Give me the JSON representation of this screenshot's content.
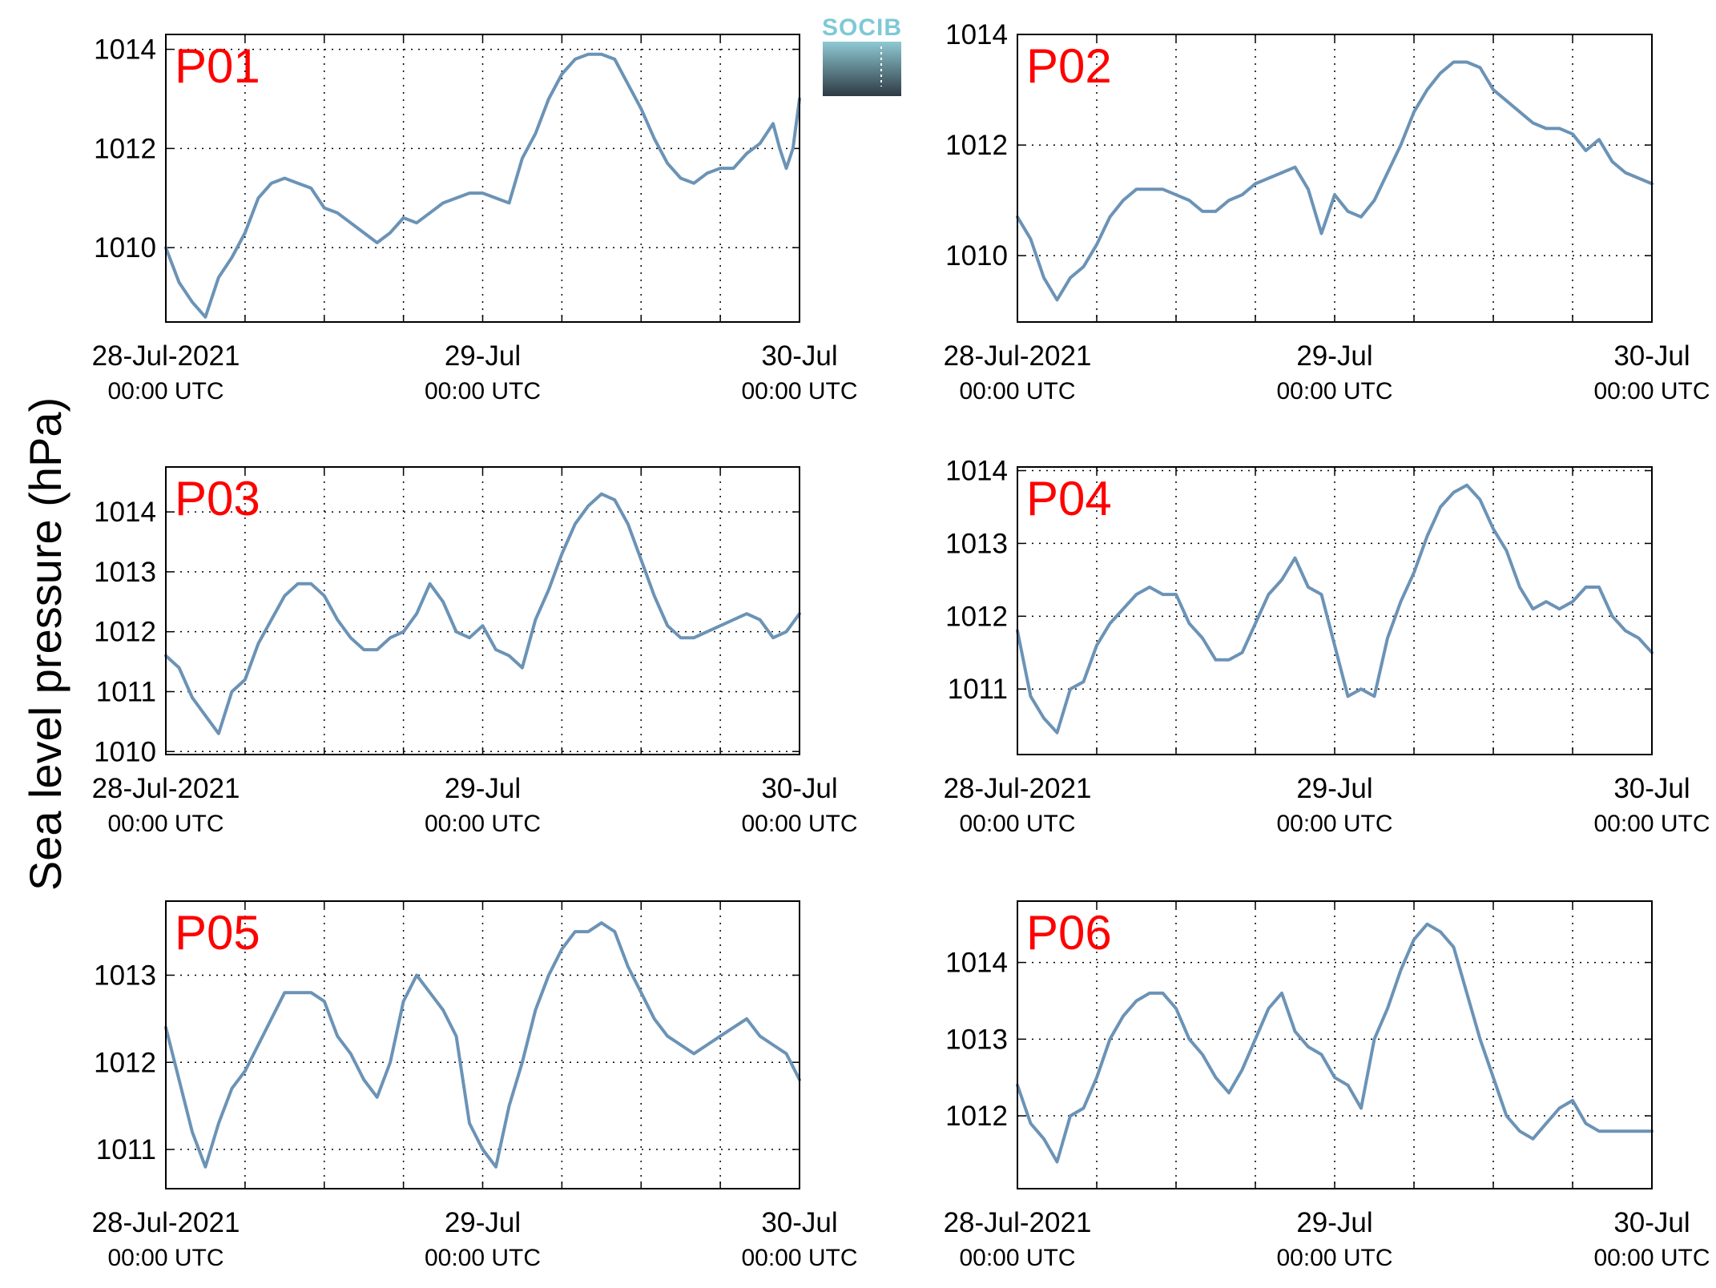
{
  "figure": {
    "ylabel": "Sea level pressure (hPa)",
    "logo_text": "SOCIB"
  },
  "chart_data": [
    {
      "type": "line",
      "panel": "P01",
      "xlim": [
        0,
        48
      ],
      "ylim": [
        1008.5,
        1014.3
      ],
      "yticks": [
        1010,
        1012,
        1014
      ],
      "xticks": [
        {
          "x": 0,
          "label": "28-Jul-2021",
          "sublabel": "00:00 UTC"
        },
        {
          "x": 24,
          "label": "29-Jul",
          "sublabel": "00:00 UTC"
        },
        {
          "x": 48,
          "label": "30-Jul",
          "sublabel": "00:00 UTC"
        }
      ],
      "grid": true,
      "series": [
        {
          "color": "#6b93b6",
          "x": [
            0,
            1,
            2,
            3,
            4,
            5,
            6,
            7,
            8,
            9,
            10,
            11,
            12,
            13,
            14,
            15,
            16,
            17,
            18,
            19,
            20,
            21,
            22,
            23,
            24,
            25,
            26,
            27,
            28,
            29,
            30,
            31,
            32,
            33,
            34,
            35,
            36,
            37,
            38,
            39,
            40,
            41,
            42,
            43,
            44,
            45,
            46,
            46.5,
            47,
            47.5,
            48
          ],
          "y": [
            1010.0,
            1009.3,
            1008.9,
            1008.6,
            1009.4,
            1009.8,
            1010.3,
            1011.0,
            1011.3,
            1011.4,
            1011.3,
            1011.2,
            1010.8,
            1010.7,
            1010.5,
            1010.3,
            1010.1,
            1010.3,
            1010.6,
            1010.5,
            1010.7,
            1010.9,
            1011.0,
            1011.1,
            1011.1,
            1011.0,
            1010.9,
            1011.8,
            1012.3,
            1013.0,
            1013.5,
            1013.8,
            1013.9,
            1013.9,
            1013.8,
            1013.3,
            1012.8,
            1012.2,
            1011.7,
            1011.4,
            1011.3,
            1011.5,
            1011.6,
            1011.6,
            1011.9,
            1012.1,
            1012.5,
            1012.0,
            1011.6,
            1012.0,
            1013.0
          ]
        }
      ]
    },
    {
      "type": "line",
      "panel": "P02",
      "xlim": [
        0,
        48
      ],
      "ylim": [
        1008.8,
        1014.0
      ],
      "yticks": [
        1010,
        1012,
        1014
      ],
      "xticks": [
        {
          "x": 0,
          "label": "28-Jul-2021",
          "sublabel": "00:00 UTC"
        },
        {
          "x": 24,
          "label": "29-Jul",
          "sublabel": "00:00 UTC"
        },
        {
          "x": 48,
          "label": "30-Jul",
          "sublabel": "00:00 UTC"
        }
      ],
      "grid": true,
      "series": [
        {
          "color": "#6b93b6",
          "x": [
            0,
            1,
            2,
            3,
            4,
            5,
            6,
            7,
            8,
            9,
            10,
            11,
            12,
            13,
            14,
            15,
            16,
            17,
            18,
            19,
            20,
            21,
            22,
            23,
            24,
            25,
            26,
            27,
            28,
            29,
            30,
            31,
            32,
            33,
            34,
            35,
            36,
            37,
            38,
            39,
            40,
            41,
            42,
            43,
            44,
            45,
            46,
            47,
            48
          ],
          "y": [
            1010.7,
            1010.3,
            1009.6,
            1009.2,
            1009.6,
            1009.8,
            1010.2,
            1010.7,
            1011.0,
            1011.2,
            1011.2,
            1011.2,
            1011.1,
            1011.0,
            1010.8,
            1010.8,
            1011.0,
            1011.1,
            1011.3,
            1011.4,
            1011.5,
            1011.6,
            1011.2,
            1010.4,
            1011.1,
            1010.8,
            1010.7,
            1011.0,
            1011.5,
            1012.0,
            1012.6,
            1013.0,
            1013.3,
            1013.5,
            1013.5,
            1013.4,
            1013.0,
            1012.8,
            1012.6,
            1012.4,
            1012.3,
            1012.3,
            1012.2,
            1011.9,
            1012.1,
            1011.7,
            1011.5,
            1011.4,
            1011.3
          ]
        }
      ]
    },
    {
      "type": "line",
      "panel": "P03",
      "xlim": [
        0,
        48
      ],
      "ylim": [
        1009.95,
        1014.75
      ],
      "yticks": [
        1010,
        1011,
        1012,
        1013,
        1014
      ],
      "xticks": [
        {
          "x": 0,
          "label": "28-Jul-2021",
          "sublabel": "00:00 UTC"
        },
        {
          "x": 24,
          "label": "29-Jul",
          "sublabel": "00:00 UTC"
        },
        {
          "x": 48,
          "label": "30-Jul",
          "sublabel": "00:00 UTC"
        }
      ],
      "grid": true,
      "series": [
        {
          "color": "#6b93b6",
          "x": [
            0,
            1,
            2,
            3,
            4,
            5,
            6,
            7,
            8,
            9,
            10,
            11,
            12,
            13,
            14,
            15,
            16,
            17,
            18,
            19,
            20,
            21,
            22,
            23,
            24,
            25,
            26,
            27,
            28,
            29,
            30,
            31,
            32,
            33,
            34,
            35,
            36,
            37,
            38,
            39,
            40,
            41,
            42,
            43,
            44,
            45,
            46,
            47,
            48
          ],
          "y": [
            1011.6,
            1011.4,
            1010.9,
            1010.6,
            1010.3,
            1011.0,
            1011.2,
            1011.8,
            1012.2,
            1012.6,
            1012.8,
            1012.8,
            1012.6,
            1012.2,
            1011.9,
            1011.7,
            1011.7,
            1011.9,
            1012.0,
            1012.3,
            1012.8,
            1012.5,
            1012.0,
            1011.9,
            1012.1,
            1011.7,
            1011.6,
            1011.4,
            1012.2,
            1012.7,
            1013.3,
            1013.8,
            1014.1,
            1014.3,
            1014.2,
            1013.8,
            1013.2,
            1012.6,
            1012.1,
            1011.9,
            1011.9,
            1012.0,
            1012.1,
            1012.2,
            1012.3,
            1012.2,
            1011.9,
            1012.0,
            1012.3
          ]
        }
      ]
    },
    {
      "type": "line",
      "panel": "P04",
      "xlim": [
        0,
        48
      ],
      "ylim": [
        1010.1,
        1014.05
      ],
      "yticks": [
        1011,
        1012,
        1013,
        1014
      ],
      "xticks": [
        {
          "x": 0,
          "label": "28-Jul-2021",
          "sublabel": "00:00 UTC"
        },
        {
          "x": 24,
          "label": "29-Jul",
          "sublabel": "00:00 UTC"
        },
        {
          "x": 48,
          "label": "30-Jul",
          "sublabel": "00:00 UTC"
        }
      ],
      "grid": true,
      "series": [
        {
          "color": "#6b93b6",
          "x": [
            0,
            1,
            2,
            3,
            4,
            5,
            6,
            7,
            8,
            9,
            10,
            11,
            12,
            13,
            14,
            15,
            16,
            17,
            18,
            19,
            20,
            21,
            22,
            23,
            24,
            25,
            26,
            27,
            28,
            29,
            30,
            31,
            32,
            33,
            34,
            35,
            36,
            37,
            38,
            39,
            40,
            41,
            42,
            43,
            44,
            45,
            46,
            47,
            48
          ],
          "y": [
            1011.8,
            1010.9,
            1010.6,
            1010.4,
            1011.0,
            1011.1,
            1011.6,
            1011.9,
            1012.1,
            1012.3,
            1012.4,
            1012.3,
            1012.3,
            1011.9,
            1011.7,
            1011.4,
            1011.4,
            1011.5,
            1011.9,
            1012.3,
            1012.5,
            1012.8,
            1012.4,
            1012.3,
            1011.6,
            1010.9,
            1011.0,
            1010.9,
            1011.7,
            1012.2,
            1012.6,
            1013.1,
            1013.5,
            1013.7,
            1013.8,
            1013.6,
            1013.2,
            1012.9,
            1012.4,
            1012.1,
            1012.2,
            1012.1,
            1012.2,
            1012.4,
            1012.4,
            1012.0,
            1011.8,
            1011.7,
            1011.5
          ]
        }
      ]
    },
    {
      "type": "line",
      "panel": "P05",
      "xlim": [
        0,
        48
      ],
      "ylim": [
        1010.55,
        1013.85
      ],
      "yticks": [
        1011,
        1012,
        1013
      ],
      "xticks": [
        {
          "x": 0,
          "label": "28-Jul-2021",
          "sublabel": "00:00 UTC"
        },
        {
          "x": 24,
          "label": "29-Jul",
          "sublabel": "00:00 UTC"
        },
        {
          "x": 48,
          "label": "30-Jul",
          "sublabel": "00:00 UTC"
        }
      ],
      "grid": true,
      "series": [
        {
          "color": "#6b93b6",
          "x": [
            0,
            1,
            2,
            3,
            4,
            5,
            6,
            7,
            8,
            9,
            10,
            11,
            12,
            13,
            14,
            15,
            16,
            17,
            18,
            19,
            20,
            21,
            22,
            23,
            24,
            25,
            26,
            27,
            28,
            29,
            30,
            31,
            32,
            33,
            34,
            35,
            36,
            37,
            38,
            39,
            40,
            41,
            42,
            43,
            44,
            45,
            46,
            47,
            48
          ],
          "y": [
            1012.4,
            1011.8,
            1011.2,
            1010.8,
            1011.3,
            1011.7,
            1011.9,
            1012.2,
            1012.5,
            1012.8,
            1012.8,
            1012.8,
            1012.7,
            1012.3,
            1012.1,
            1011.8,
            1011.6,
            1012.0,
            1012.7,
            1013.0,
            1012.8,
            1012.6,
            1012.3,
            1011.3,
            1011.0,
            1010.8,
            1011.5,
            1012.0,
            1012.6,
            1013.0,
            1013.3,
            1013.5,
            1013.5,
            1013.6,
            1013.5,
            1013.1,
            1012.8,
            1012.5,
            1012.3,
            1012.2,
            1012.1,
            1012.2,
            1012.3,
            1012.4,
            1012.5,
            1012.3,
            1012.2,
            1012.1,
            1011.8
          ]
        }
      ]
    },
    {
      "type": "line",
      "panel": "P06",
      "xlim": [
        0,
        48
      ],
      "ylim": [
        1011.05,
        1014.8
      ],
      "yticks": [
        1012,
        1013,
        1014
      ],
      "xticks": [
        {
          "x": 0,
          "label": "28-Jul-2021",
          "sublabel": "00:00 UTC"
        },
        {
          "x": 24,
          "label": "29-Jul",
          "sublabel": "00:00 UTC"
        },
        {
          "x": 48,
          "label": "30-Jul",
          "sublabel": "00:00 UTC"
        }
      ],
      "grid": true,
      "series": [
        {
          "color": "#6b93b6",
          "x": [
            0,
            1,
            2,
            3,
            4,
            5,
            6,
            7,
            8,
            9,
            10,
            11,
            12,
            13,
            14,
            15,
            16,
            17,
            18,
            19,
            20,
            21,
            22,
            23,
            24,
            25,
            26,
            27,
            28,
            29,
            30,
            31,
            32,
            33,
            34,
            35,
            36,
            37,
            38,
            39,
            40,
            41,
            42,
            43,
            44,
            45,
            46,
            47,
            48
          ],
          "y": [
            1012.4,
            1011.9,
            1011.7,
            1011.4,
            1012.0,
            1012.1,
            1012.5,
            1013.0,
            1013.3,
            1013.5,
            1013.6,
            1013.6,
            1013.4,
            1013.0,
            1012.8,
            1012.5,
            1012.3,
            1012.6,
            1013.0,
            1013.4,
            1013.6,
            1013.1,
            1012.9,
            1012.8,
            1012.5,
            1012.4,
            1012.1,
            1013.0,
            1013.4,
            1013.9,
            1014.3,
            1014.5,
            1014.4,
            1014.2,
            1013.6,
            1013.0,
            1012.5,
            1012.0,
            1011.8,
            1011.7,
            1011.9,
            1012.1,
            1012.2,
            1011.9,
            1011.8,
            1011.8,
            1011.8,
            1011.8,
            1011.8
          ]
        }
      ]
    }
  ]
}
